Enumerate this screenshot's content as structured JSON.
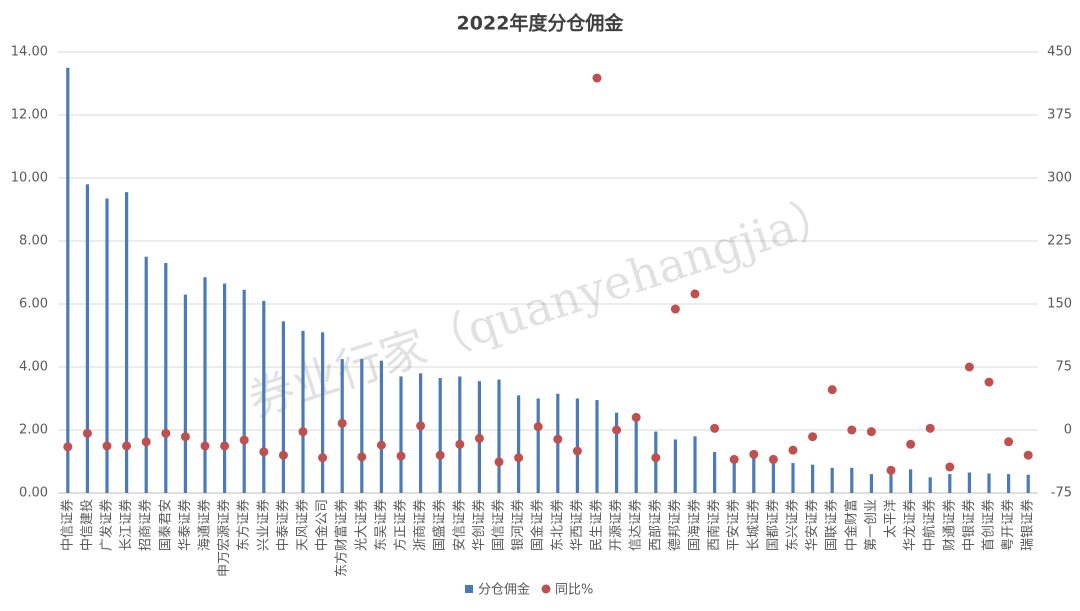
{
  "chart_data": {
    "type": "bar",
    "title": "2022年度分仓佣金",
    "annotation": "券业行家（quanyehangjia）",
    "categories": [
      "中信证券",
      "中信建投",
      "广发证券",
      "长江证券",
      "招商证券",
      "国泰君安",
      "华泰证券",
      "海通证券",
      "申万宏源证券",
      "东方证券",
      "兴业证券",
      "中泰证券",
      "天风证券",
      "中金公司",
      "东方财富证券",
      "光大证券",
      "东吴证券",
      "方正证券",
      "浙商证券",
      "国盛证券",
      "安信证券",
      "华创证券",
      "国信证券",
      "银河证券",
      "国金证券",
      "东北证券",
      "华西证券",
      "民生证券",
      "开源证券",
      "信达证券",
      "西部证券",
      "德邦证券",
      "国海证券",
      "西南证券",
      "平安证券",
      "长城证券",
      "国都证券",
      "东兴证券",
      "华安证券",
      "国联证券",
      "中金财富",
      "第一创业",
      "太平洋",
      "华龙证券",
      "中航证券",
      "财通证券",
      "中银证券",
      "首创证券",
      "粤开证券",
      "瑞银证券"
    ],
    "series": [
      {
        "name": "分仓佣金",
        "type": "bar",
        "color": "#4a7ab8",
        "values": [
          13.5,
          9.8,
          9.35,
          9.55,
          7.5,
          7.3,
          6.3,
          6.85,
          6.65,
          6.45,
          6.1,
          5.45,
          5.15,
          5.1,
          4.25,
          4.25,
          4.2,
          3.7,
          3.8,
          3.65,
          3.7,
          3.55,
          3.6,
          3.1,
          3.0,
          3.15,
          3.0,
          2.95,
          2.55,
          2.4,
          1.95,
          1.7,
          1.8,
          1.3,
          1.0,
          1.15,
          1.0,
          0.95,
          0.9,
          0.8,
          0.8,
          0.6,
          0.75,
          0.75,
          0.5,
          0.6,
          0.65,
          0.62,
          0.6,
          0.58
        ]
      },
      {
        "name": "同比%",
        "type": "scatter",
        "color": "#c0504d",
        "axis": "y2",
        "values": [
          -20,
          -4,
          -19,
          -19,
          -14,
          -4,
          -8,
          -19,
          -19,
          -12,
          -26,
          -30,
          -2,
          -33,
          8,
          -32,
          -18,
          -31,
          5,
          -30,
          -17,
          -10,
          -38,
          -33,
          4,
          -11,
          -25,
          419,
          0,
          15,
          -33,
          144,
          162,
          2,
          -35,
          -29,
          -35,
          -24,
          -8,
          48,
          0,
          -2,
          -48,
          -17,
          2,
          -44,
          75,
          57,
          -14,
          -30
        ]
      }
    ],
    "ylim": [
      0,
      14
    ],
    "yticks": [
      {
        "value": 0,
        "label": "0.00"
      },
      {
        "value": 2,
        "label": "2.00"
      },
      {
        "value": 4,
        "label": "4.00"
      },
      {
        "value": 6,
        "label": "6.00"
      },
      {
        "value": 8,
        "label": "8.00"
      },
      {
        "value": 10,
        "label": "10.00"
      },
      {
        "value": 12,
        "label": "12.00"
      },
      {
        "value": 14,
        "label": "14.00"
      }
    ],
    "y2lim": [
      -75,
      450
    ],
    "y2ticks": [
      -75,
      0,
      75,
      150,
      225,
      300,
      375,
      450
    ],
    "grid": true
  }
}
